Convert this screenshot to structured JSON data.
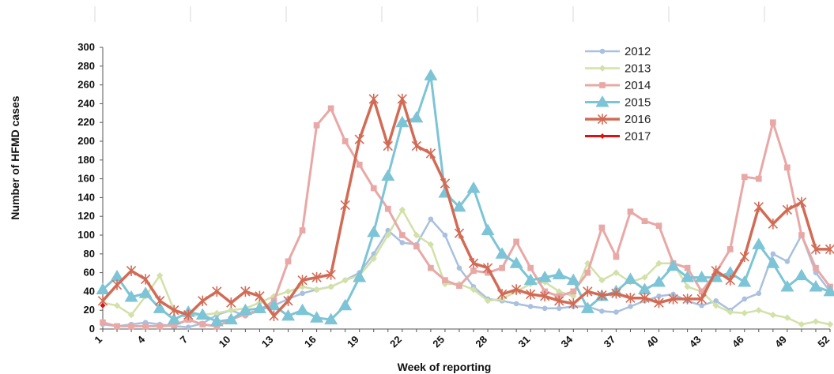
{
  "chart_data": {
    "type": "line",
    "xlabel": "Week of reporting",
    "ylabel": "Number of HFMD cases",
    "ylim": [
      0,
      300
    ],
    "yticks": [
      0,
      20,
      40,
      60,
      80,
      100,
      120,
      140,
      160,
      180,
      200,
      220,
      240,
      260,
      280,
      300
    ],
    "xlim": [
      1,
      52
    ],
    "xticks": [
      1,
      4,
      7,
      10,
      13,
      16,
      19,
      22,
      25,
      28,
      31,
      34,
      37,
      40,
      43,
      46,
      49,
      52
    ],
    "grid": false,
    "legend_position": "top-right",
    "series": [
      {
        "name": "2012",
        "color": "#a9c0de",
        "marker": "circle",
        "values": [
          5,
          3,
          5,
          7,
          5,
          3,
          2,
          6,
          15,
          20,
          14,
          20,
          25,
          32,
          38,
          42,
          45,
          52,
          60,
          80,
          105,
          92,
          90,
          117,
          100,
          65,
          45,
          32,
          30,
          27,
          24,
          22,
          22,
          24,
          24,
          19,
          18,
          24,
          30,
          35,
          37,
          30,
          25,
          30,
          20,
          32,
          38,
          80,
          72,
          100,
          60,
          40
        ]
      },
      {
        "name": "2013",
        "color": "#d2e1a8",
        "marker": "diamond",
        "values": [
          28,
          25,
          15,
          35,
          57,
          20,
          14,
          15,
          17,
          20,
          22,
          28,
          35,
          40,
          45,
          42,
          45,
          52,
          57,
          75,
          100,
          127,
          100,
          90,
          48,
          48,
          42,
          30,
          32,
          40,
          48,
          50,
          40,
          35,
          70,
          52,
          60,
          50,
          55,
          70,
          70,
          45,
          40,
          25,
          18,
          17,
          20,
          15,
          12,
          5,
          8,
          5
        ]
      },
      {
        "name": "2014",
        "color": "#e8a8a6",
        "marker": "square",
        "values": [
          7,
          3,
          3,
          3,
          3,
          4,
          10,
          5,
          3,
          10,
          16,
          20,
          30,
          72,
          105,
          217,
          235,
          200,
          175,
          150,
          128,
          100,
          88,
          65,
          52,
          46,
          62,
          60,
          65,
          93,
          65,
          40,
          35,
          40,
          60,
          108,
          77,
          125,
          115,
          110,
          70,
          65,
          40,
          60,
          85,
          162,
          160,
          220,
          172,
          100,
          65,
          45
        ]
      },
      {
        "name": "2015",
        "color": "#7cc4d6",
        "marker": "triangle",
        "values": [
          42,
          56,
          34,
          38,
          22,
          10,
          18,
          15,
          8,
          10,
          20,
          22,
          25,
          14,
          20,
          12,
          10,
          25,
          55,
          103,
          163,
          220,
          225,
          270,
          145,
          130,
          150,
          105,
          80,
          70,
          52,
          55,
          58,
          52,
          22,
          35,
          40,
          53,
          42,
          50,
          67,
          55,
          55,
          55,
          60,
          50,
          90,
          70,
          45,
          57,
          45,
          40
        ]
      },
      {
        "name": "2016",
        "color": "#d26b55",
        "marker": "star",
        "values": [
          30,
          47,
          62,
          53,
          30,
          20,
          15,
          30,
          40,
          28,
          40,
          35,
          14,
          30,
          52,
          55,
          58,
          132,
          202,
          245,
          195,
          245,
          195,
          187,
          155,
          102,
          70,
          65,
          37,
          42,
          37,
          35,
          30,
          27,
          40,
          36,
          38,
          33,
          33,
          28,
          32,
          32,
          32,
          62,
          52,
          77,
          130,
          112,
          127,
          135,
          85,
          85
        ]
      },
      {
        "name": "2017",
        "color": "#e01010",
        "marker": "diamond",
        "values": [
          25
        ]
      }
    ]
  }
}
